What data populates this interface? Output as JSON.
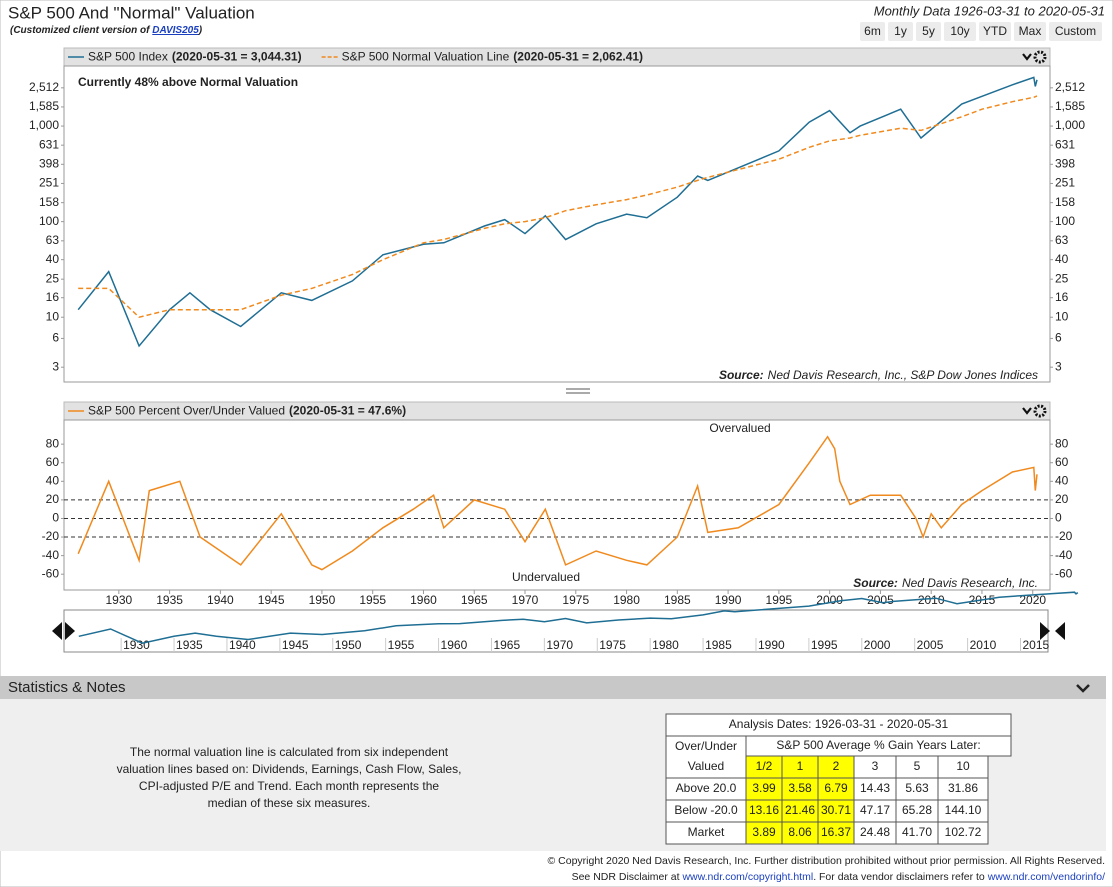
{
  "header": {
    "title": "S&P 500 And \"Normal\" Valuation",
    "subtitle_prefix": "(Customized client version of ",
    "subtitle_link": "DAVIS205",
    "subtitle_suffix": ")",
    "date_range": "Monthly Data 1926-03-31 to 2020-05-31",
    "buttons": [
      "6m",
      "1y",
      "5y",
      "10y",
      "YTD",
      "Max",
      "Custom"
    ]
  },
  "chart_data": [
    {
      "type": "line",
      "log_scale": true,
      "x": [
        1926,
        1929,
        1932,
        1935,
        1937,
        1939,
        1942,
        1946,
        1949,
        1953,
        1956,
        1960,
        1962,
        1966,
        1968,
        1970,
        1972,
        1974,
        1977,
        1980,
        1982,
        1985,
        1987,
        1988,
        1990,
        1995,
        1998,
        2000,
        2002,
        2003,
        2007,
        2009,
        2013,
        2015,
        2018,
        2020.1,
        2020.25,
        2020.42
      ],
      "series": [
        {
          "name": "S&P 500 Index",
          "legend_value": "(2020-05-31 = 3,044.31)",
          "color": "#1f6e94",
          "dashed": false,
          "values": [
            12,
            30,
            5,
            12,
            18,
            12,
            8,
            18,
            15,
            24,
            45,
            58,
            60,
            90,
            105,
            75,
            115,
            65,
            95,
            120,
            110,
            180,
            300,
            270,
            330,
            550,
            1100,
            1450,
            850,
            1000,
            1500,
            750,
            1700,
            2050,
            2700,
            3230,
            2600,
            3044.31
          ]
        },
        {
          "name": "S&P 500 Normal Valuation Line",
          "legend_value": "(2020-05-31 = 2,062.41)",
          "color": "#f08a1e",
          "dashed": true,
          "values": [
            20,
            20,
            10,
            12,
            12,
            12,
            12,
            17,
            20,
            28,
            40,
            60,
            65,
            85,
            95,
            100,
            110,
            130,
            150,
            170,
            190,
            230,
            270,
            290,
            330,
            450,
            600,
            700,
            750,
            800,
            950,
            900,
            1250,
            1500,
            1800,
            2000,
            2030,
            2062.41
          ]
        }
      ],
      "xlim": [
        1924.6,
        2021.7
      ],
      "ylim": [
        2.1,
        4250
      ],
      "yticks": [
        3,
        6,
        10,
        16,
        25,
        40,
        63,
        100,
        158,
        251,
        398,
        631,
        {
          "value": 1000,
          "label": "1,000"
        },
        {
          "value": 1585,
          "label": "1,585"
        },
        {
          "value": 2512,
          "label": "2,512"
        }
      ],
      "annotation": "Currently 48% above Normal Valuation",
      "source_label": "Source:",
      "source": "Ned Davis Research, Inc., S&P Dow Jones Indices"
    },
    {
      "type": "line",
      "log_scale": false,
      "x": [
        1926,
        1929,
        1932,
        1933,
        1936,
        1938,
        1942,
        1946,
        1949,
        1950,
        1953,
        1956,
        1959,
        1961,
        1962,
        1965,
        1968,
        1970,
        1972,
        1974,
        1977,
        1980,
        1982,
        1985,
        1987,
        1988,
        1991,
        1995,
        1998,
        1999.8,
        2000.5,
        2001,
        2002,
        2004,
        2007,
        2008.5,
        2009.2,
        2010,
        2011,
        2013,
        2015,
        2018,
        2020.1,
        2020.25,
        2020.42
      ],
      "series": [
        {
          "name": "S&P 500 Percent Over/Under Valued",
          "legend_value": "(2020-05-31 = 47.6%)",
          "color": "#f08a1e",
          "dashed": false,
          "values": [
            -38,
            40,
            -45,
            30,
            40,
            -20,
            -50,
            5,
            -50,
            -55,
            -35,
            -10,
            10,
            25,
            -10,
            20,
            10,
            -25,
            10,
            -50,
            -35,
            -45,
            -50,
            -20,
            35,
            -15,
            -10,
            15,
            60,
            88,
            75,
            40,
            15,
            25,
            25,
            0,
            -20,
            5,
            -10,
            15,
            30,
            50,
            55,
            30,
            47.6
          ]
        }
      ],
      "xlim": [
        1924.6,
        2021.7
      ],
      "ylim": [
        -77,
        106
      ],
      "yticks": [
        -60,
        -40,
        -20,
        0,
        20,
        40,
        60,
        80
      ],
      "xticks": [
        1930,
        1935,
        1940,
        1945,
        1950,
        1955,
        1960,
        1965,
        1970,
        1975,
        1980,
        1985,
        1990,
        1995,
        2000,
        2005,
        2010,
        2015,
        2020
      ],
      "reference_lines": [
        20,
        0,
        -20
      ],
      "annotations": [
        "Overvalued",
        "Undervalued"
      ],
      "source_label": "Source:",
      "source": "Ned Davis Research, Inc."
    }
  ],
  "navigator": {
    "xlim": [
      1924.6,
      2017.6
    ],
    "xticks": [
      1930,
      1935,
      1940,
      1945,
      1950,
      1955,
      1960,
      1965,
      1970,
      1975,
      1980,
      1985,
      1990,
      1995,
      2000,
      2005,
      2010,
      2015
    ]
  },
  "stats": {
    "title": "Statistics & Notes",
    "notes": [
      "The normal valuation line is calculated from six independent",
      "valuation lines based on: Dividends, Earnings, Cash Flow, Sales,",
      "CPI-adjusted P/E and Trend. Each month represents the",
      "median of these six measures."
    ],
    "table": {
      "title": "Analysis Dates: 1926-03-31 - 2020-05-31",
      "row_header": [
        "Over/Under",
        "Valued"
      ],
      "group_header": "S&P 500 Average % Gain Years Later:",
      "periods": [
        "1/2",
        "1",
        "2",
        "3",
        "5",
        "10"
      ],
      "highlight_color": "#ffff00",
      "highlight_count": 3,
      "rows": [
        {
          "label": "Above 20.0",
          "values": [
            "3.99",
            "3.58",
            "6.79",
            "14.43",
            "5.63",
            "31.86"
          ]
        },
        {
          "label": "Below -20.0",
          "values": [
            "13.16",
            "21.46",
            "30.71",
            "47.17",
            "65.28",
            "144.10"
          ]
        },
        {
          "label": "Market",
          "values": [
            "3.89",
            "8.06",
            "16.37",
            "24.48",
            "41.70",
            "102.72"
          ]
        }
      ]
    }
  },
  "footer": {
    "line1": "© Copyright 2020 Ned Davis Research, Inc. Further distribution prohibited without prior permission. All Rights Reserved.",
    "line2_prefix": "See NDR Disclaimer at ",
    "link1": "www.ndr.com/copyright.html",
    "line2_middle": ". For data vendor disclaimers refer to ",
    "link2": "www.ndr.com/vendorinfo/"
  }
}
